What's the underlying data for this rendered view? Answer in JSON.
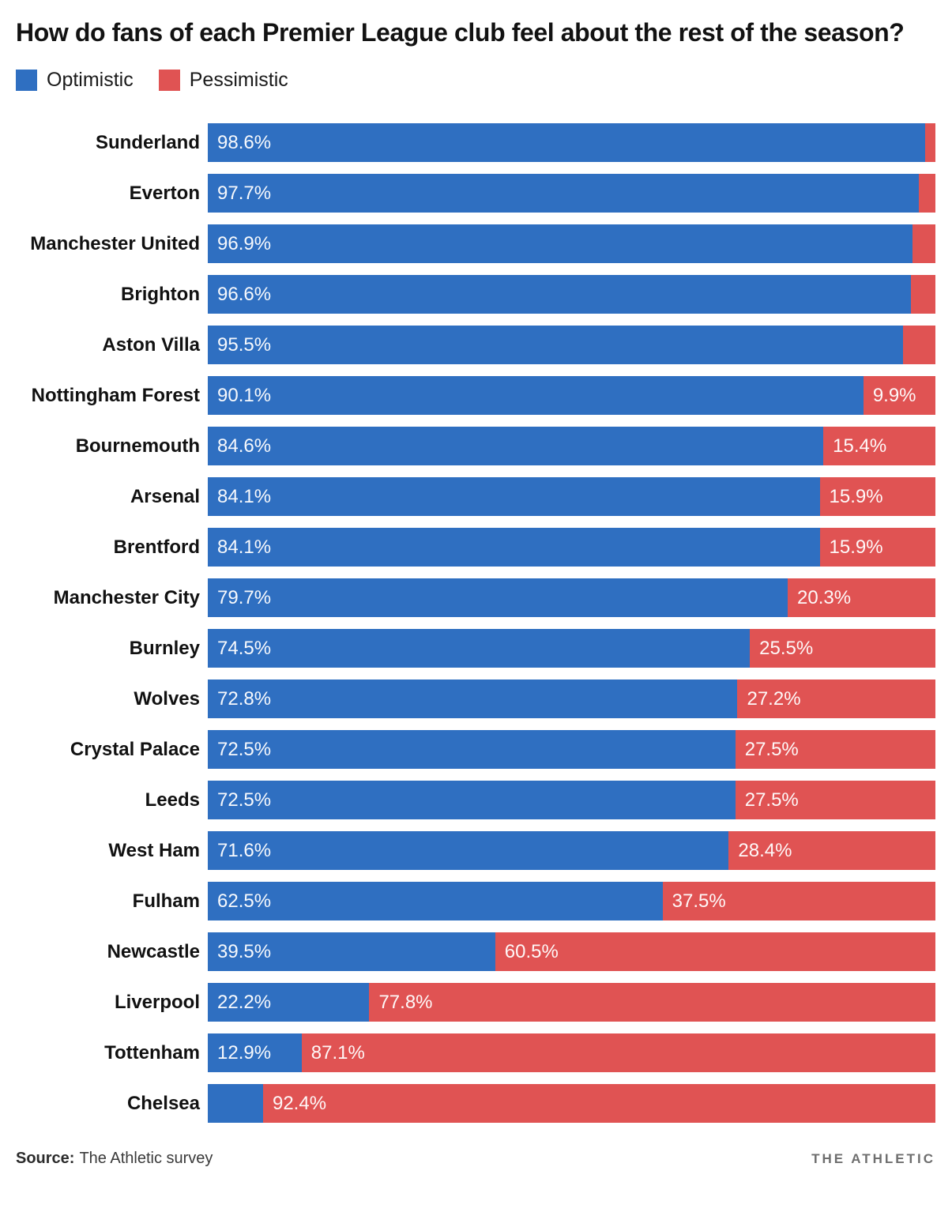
{
  "title": "How do fans of each Premier League club feel about the rest of the season?",
  "legend": {
    "items": [
      {
        "label": "Optimistic"
      },
      {
        "label": "Pessimistic"
      }
    ]
  },
  "colors": {
    "optimistic": "#2f6fc1",
    "pessimistic": "#e05353"
  },
  "source": {
    "prefix": "Source:",
    "text": "The Athletic survey"
  },
  "brand": "THE ATHLETIC",
  "chart_data": {
    "type": "bar",
    "orientation": "horizontal",
    "stacked": true,
    "xlim": [
      0,
      100
    ],
    "grid": false,
    "legend_position": "top-left",
    "title": "How do fans of each Premier League club feel about the rest of the season?",
    "categories": [
      "Sunderland",
      "Everton",
      "Manchester United",
      "Brighton",
      "Aston Villa",
      "Nottingham Forest",
      "Bournemouth",
      "Arsenal",
      "Brentford",
      "Manchester City",
      "Burnley",
      "Wolves",
      "Crystal Palace",
      "Leeds",
      "West Ham",
      "Fulham",
      "Newcastle",
      "Liverpool",
      "Tottenham",
      "Chelsea"
    ],
    "series": [
      {
        "name": "Optimistic",
        "color": "#2f6fc1",
        "values": [
          98.6,
          97.7,
          96.9,
          96.6,
          95.5,
          90.1,
          84.6,
          84.1,
          84.1,
          79.7,
          74.5,
          72.8,
          72.5,
          72.5,
          71.6,
          62.5,
          39.5,
          22.2,
          12.9,
          7.6
        ]
      },
      {
        "name": "Pessimistic",
        "color": "#e05353",
        "values": [
          1.4,
          2.3,
          3.1,
          3.4,
          4.5,
          9.9,
          15.4,
          15.9,
          15.9,
          20.3,
          25.5,
          27.2,
          27.5,
          27.5,
          28.4,
          37.5,
          60.5,
          77.8,
          87.1,
          92.4
        ]
      }
    ],
    "rows": [
      {
        "club": "Sunderland",
        "optimistic": 98.6,
        "pessimistic": 1.4,
        "optimistic_label": "98.6%",
        "pessimistic_label": ""
      },
      {
        "club": "Everton",
        "optimistic": 97.7,
        "pessimistic": 2.3,
        "optimistic_label": "97.7%",
        "pessimistic_label": ""
      },
      {
        "club": "Manchester United",
        "optimistic": 96.9,
        "pessimistic": 3.1,
        "optimistic_label": "96.9%",
        "pessimistic_label": ""
      },
      {
        "club": "Brighton",
        "optimistic": 96.6,
        "pessimistic": 3.4,
        "optimistic_label": "96.6%",
        "pessimistic_label": ""
      },
      {
        "club": "Aston Villa",
        "optimistic": 95.5,
        "pessimistic": 4.5,
        "optimistic_label": "95.5%",
        "pessimistic_label": ""
      },
      {
        "club": "Nottingham Forest",
        "optimistic": 90.1,
        "pessimistic": 9.9,
        "optimistic_label": "90.1%",
        "pessimistic_label": "9.9%"
      },
      {
        "club": "Bournemouth",
        "optimistic": 84.6,
        "pessimistic": 15.4,
        "optimistic_label": "84.6%",
        "pessimistic_label": "15.4%"
      },
      {
        "club": "Arsenal",
        "optimistic": 84.1,
        "pessimistic": 15.9,
        "optimistic_label": "84.1%",
        "pessimistic_label": "15.9%"
      },
      {
        "club": "Brentford",
        "optimistic": 84.1,
        "pessimistic": 15.9,
        "optimistic_label": "84.1%",
        "pessimistic_label": "15.9%"
      },
      {
        "club": "Manchester City",
        "optimistic": 79.7,
        "pessimistic": 20.3,
        "optimistic_label": "79.7%",
        "pessimistic_label": "20.3%"
      },
      {
        "club": "Burnley",
        "optimistic": 74.5,
        "pessimistic": 25.5,
        "optimistic_label": "74.5%",
        "pessimistic_label": "25.5%"
      },
      {
        "club": "Wolves",
        "optimistic": 72.8,
        "pessimistic": 27.2,
        "optimistic_label": "72.8%",
        "pessimistic_label": "27.2%"
      },
      {
        "club": "Crystal Palace",
        "optimistic": 72.5,
        "pessimistic": 27.5,
        "optimistic_label": "72.5%",
        "pessimistic_label": "27.5%"
      },
      {
        "club": "Leeds",
        "optimistic": 72.5,
        "pessimistic": 27.5,
        "optimistic_label": "72.5%",
        "pessimistic_label": "27.5%"
      },
      {
        "club": "West Ham",
        "optimistic": 71.6,
        "pessimistic": 28.4,
        "optimistic_label": "71.6%",
        "pessimistic_label": "28.4%"
      },
      {
        "club": "Fulham",
        "optimistic": 62.5,
        "pessimistic": 37.5,
        "optimistic_label": "62.5%",
        "pessimistic_label": "37.5%"
      },
      {
        "club": "Newcastle",
        "optimistic": 39.5,
        "pessimistic": 60.5,
        "optimistic_label": "39.5%",
        "pessimistic_label": "60.5%"
      },
      {
        "club": "Liverpool",
        "optimistic": 22.2,
        "pessimistic": 77.8,
        "optimistic_label": "22.2%",
        "pessimistic_label": "77.8%"
      },
      {
        "club": "Tottenham",
        "optimistic": 12.9,
        "pessimistic": 87.1,
        "optimistic_label": "12.9%",
        "pessimistic_label": "87.1%"
      },
      {
        "club": "Chelsea",
        "optimistic": 7.6,
        "pessimistic": 92.4,
        "optimistic_label": "",
        "pessimistic_label": "92.4%"
      }
    ]
  }
}
